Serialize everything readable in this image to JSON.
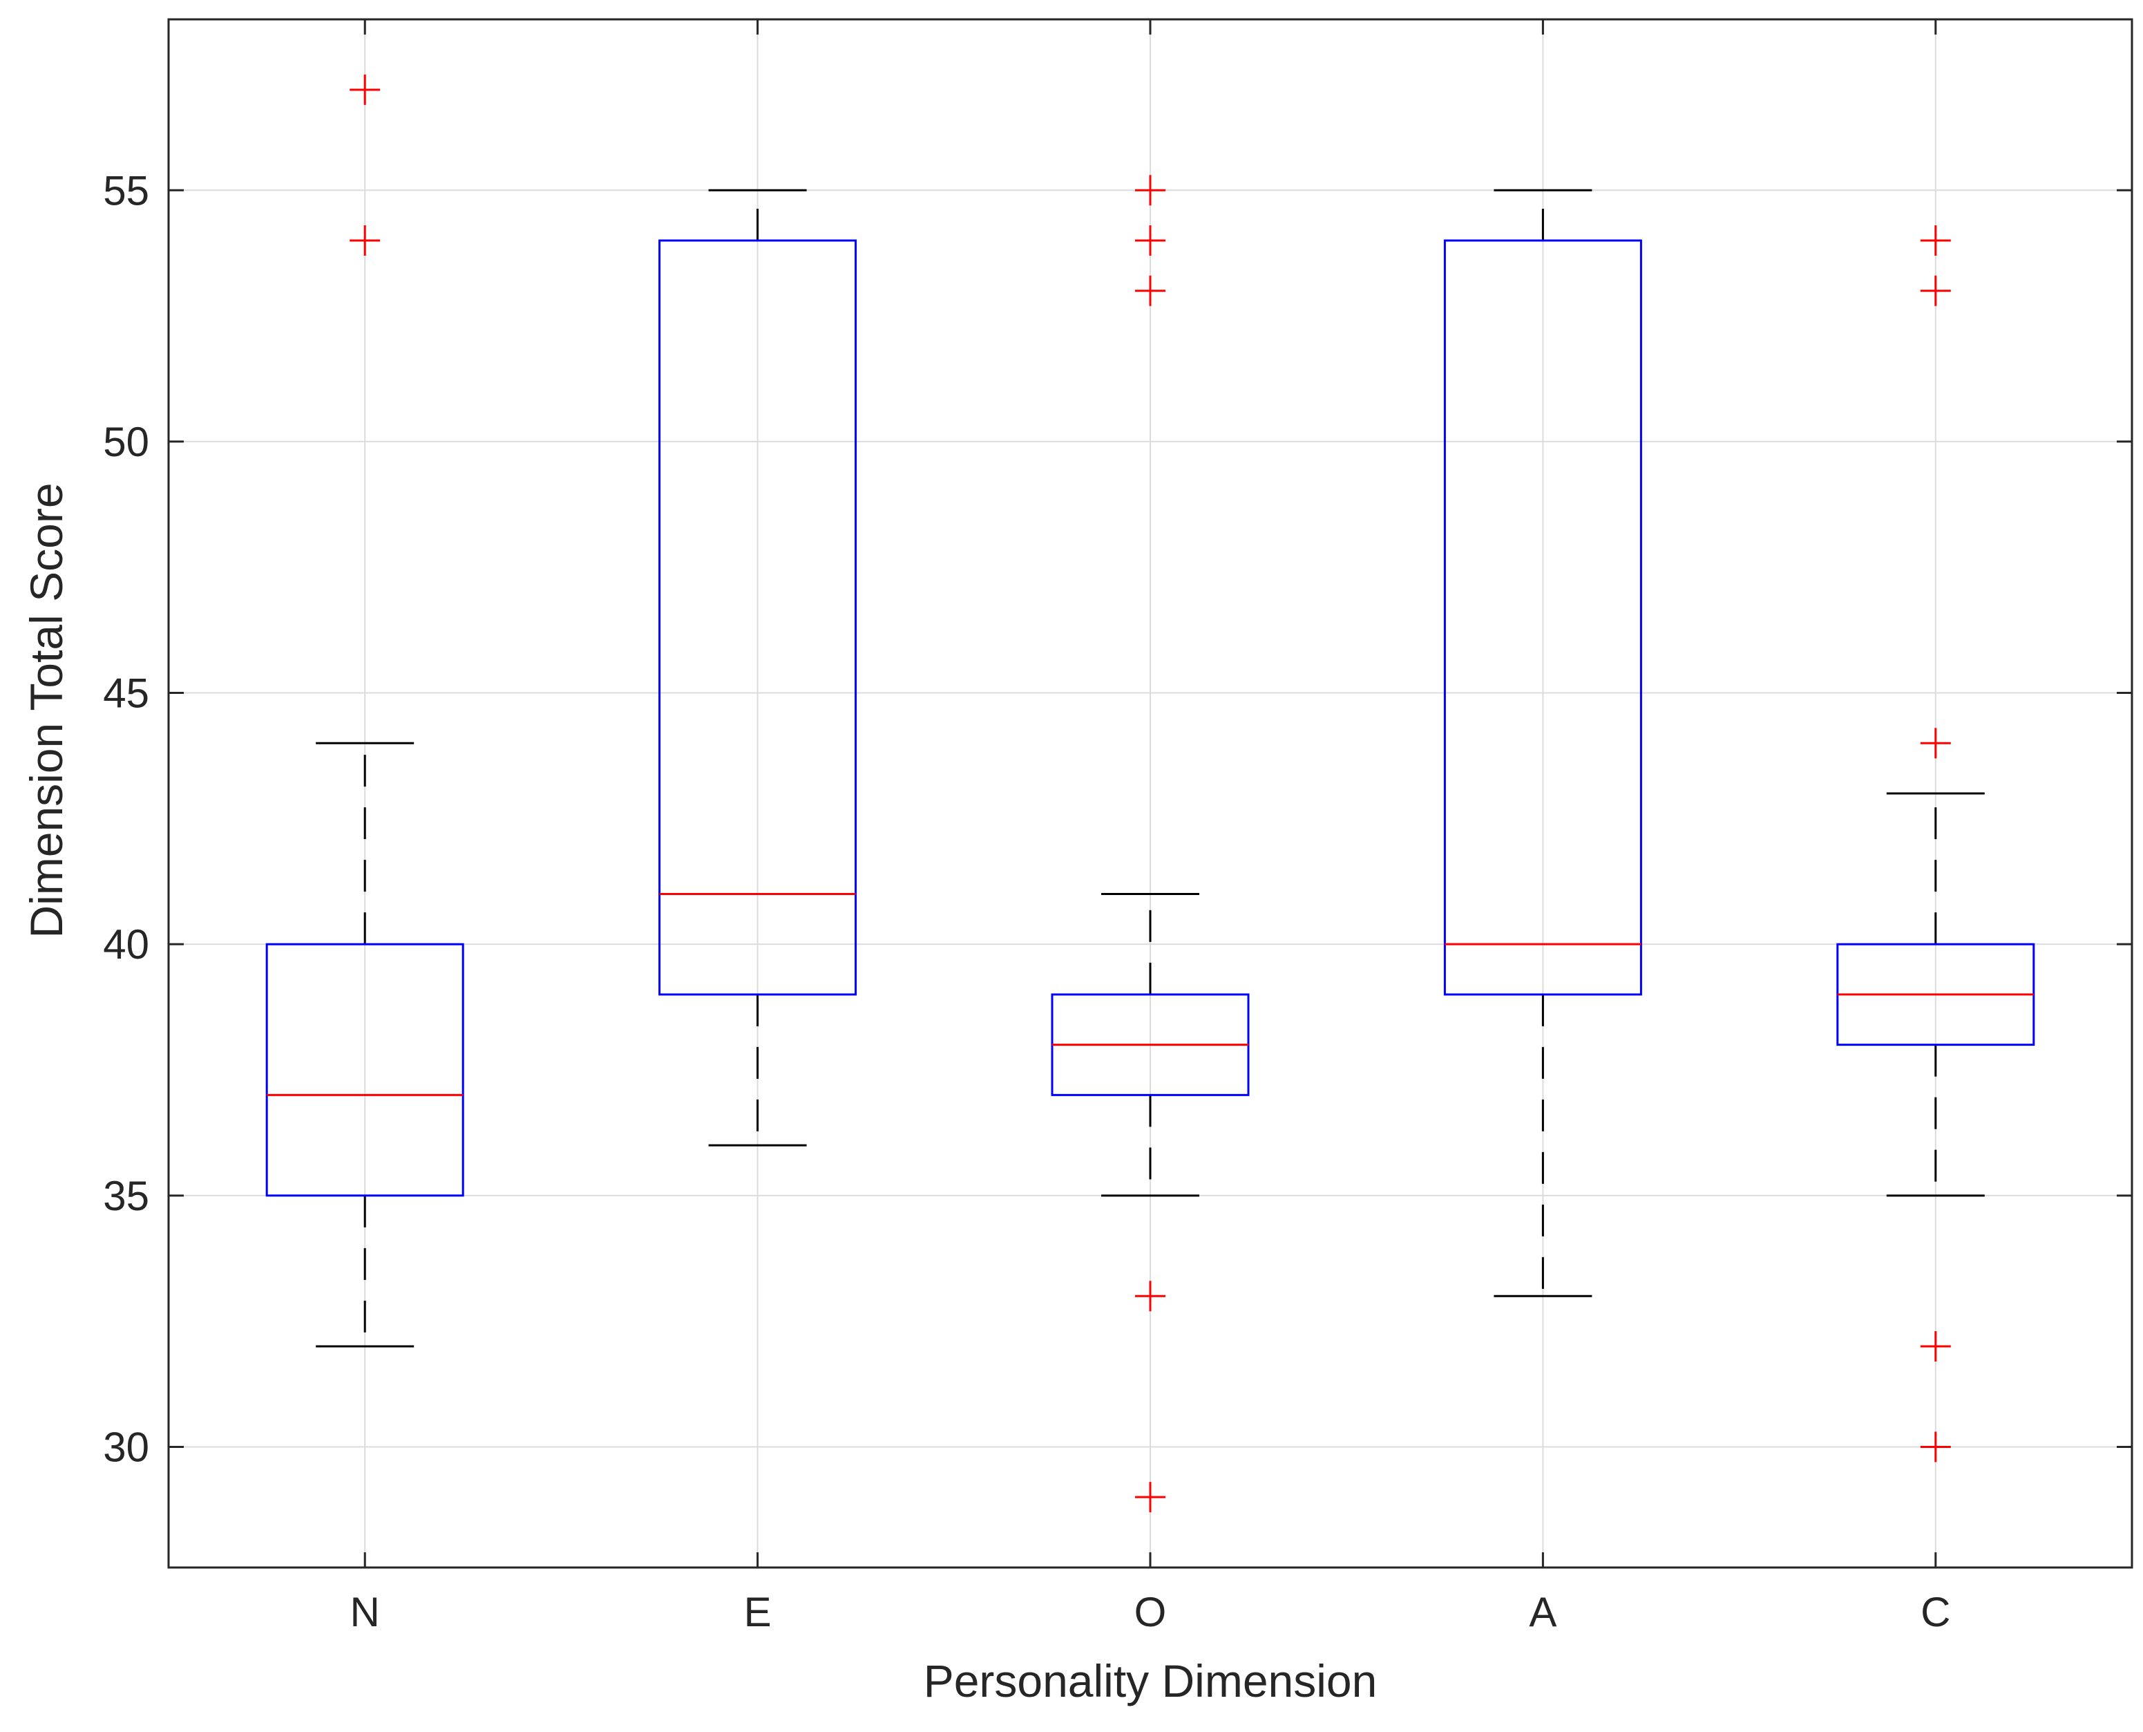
{
  "chart_data": {
    "type": "box",
    "title": "",
    "xlabel": "Personality Dimension",
    "ylabel": "Dimension Total Score",
    "categories": [
      "N",
      "E",
      "O",
      "A",
      "C"
    ],
    "ylim": [
      27.6,
      58.4
    ],
    "yticks": [
      30,
      35,
      40,
      45,
      50,
      55
    ],
    "grid": true,
    "boxes": [
      {
        "category": "N",
        "whisker_low": 32,
        "q1": 35,
        "median": 37,
        "q3": 40,
        "whisker_high": 44,
        "outliers": [
          54,
          57
        ]
      },
      {
        "category": "E",
        "whisker_low": 36,
        "q1": 39,
        "median": 41,
        "q3": 54,
        "whisker_high": 55,
        "outliers": []
      },
      {
        "category": "O",
        "whisker_low": 35,
        "q1": 37,
        "median": 38,
        "q3": 39,
        "whisker_high": 41,
        "outliers": [
          29,
          33,
          53,
          54,
          55
        ]
      },
      {
        "category": "A",
        "whisker_low": 33,
        "q1": 39,
        "median": 40,
        "q3": 54,
        "whisker_high": 55,
        "outliers": []
      },
      {
        "category": "C",
        "whisker_low": 35,
        "q1": 38,
        "median": 39,
        "q3": 40,
        "whisker_high": 43,
        "outliers": [
          30,
          32,
          44,
          53,
          54
        ]
      }
    ],
    "colors": {
      "box": "#0000ff",
      "median": "#ff0000",
      "whisker": "#000000",
      "outlier": "#ff0000",
      "grid": "#dcdcdc",
      "axis": "#262626"
    }
  }
}
